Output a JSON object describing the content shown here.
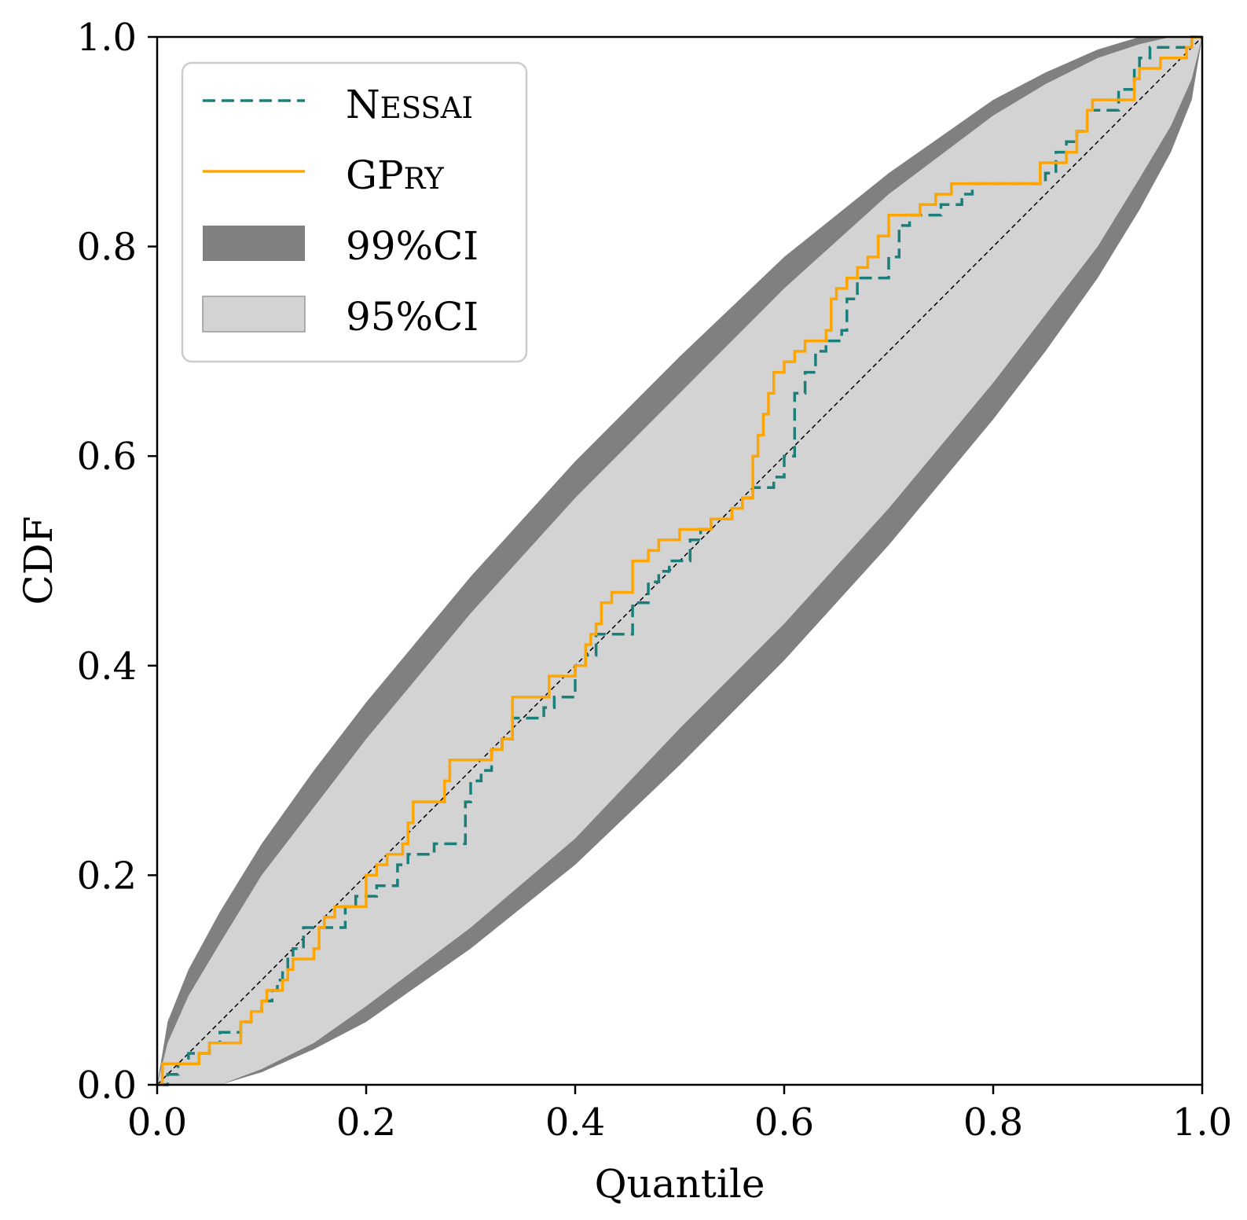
{
  "chart_data": {
    "type": "line",
    "title": "",
    "xlabel": "Quantile",
    "ylabel": "CDF",
    "xlim": [
      0,
      1
    ],
    "ylim": [
      0,
      1
    ],
    "xticks": [
      "0.0",
      "0.2",
      "0.4",
      "0.6",
      "0.8",
      "1.0"
    ],
    "yticks": [
      "0.0",
      "0.2",
      "0.4",
      "0.6",
      "0.8",
      "1.0"
    ],
    "grid": false,
    "legend_position": "top-left",
    "bands": [
      {
        "name": "99%CI",
        "color": "#808080",
        "x": [
          0,
          0.01,
          0.03,
          0.06,
          0.1,
          0.15,
          0.2,
          0.3,
          0.4,
          0.5,
          0.6,
          0.7,
          0.8,
          0.85,
          0.9,
          0.94,
          0.97,
          0.99,
          1.0
        ],
        "upper": [
          0,
          0.06,
          0.11,
          0.165,
          0.23,
          0.3,
          0.365,
          0.485,
          0.595,
          0.695,
          0.79,
          0.87,
          0.94,
          0.966,
          0.988,
          1.0,
          1.0,
          1.0,
          1.0
        ],
        "lower": [
          0,
          0,
          0,
          0,
          0.012,
          0.034,
          0.06,
          0.13,
          0.21,
          0.305,
          0.405,
          0.515,
          0.635,
          0.7,
          0.77,
          0.835,
          0.89,
          0.94,
          1.0
        ]
      },
      {
        "name": "95%CI",
        "color": "#d3d3d3",
        "x": [
          0,
          0.01,
          0.03,
          0.06,
          0.1,
          0.15,
          0.2,
          0.3,
          0.4,
          0.5,
          0.6,
          0.7,
          0.8,
          0.85,
          0.9,
          0.94,
          0.97,
          0.99,
          1.0
        ],
        "upper": [
          0,
          0.04,
          0.085,
          0.135,
          0.2,
          0.265,
          0.33,
          0.45,
          0.56,
          0.66,
          0.76,
          0.85,
          0.925,
          0.955,
          0.98,
          0.993,
          1.0,
          1.0,
          1.0
        ],
        "lower": [
          0,
          0,
          0,
          0,
          0.015,
          0.04,
          0.075,
          0.15,
          0.235,
          0.34,
          0.44,
          0.55,
          0.67,
          0.735,
          0.8,
          0.865,
          0.915,
          0.96,
          1.0
        ]
      }
    ],
    "reference_line": {
      "from": [
        0,
        0
      ],
      "to": [
        1,
        1
      ],
      "style": "dashed",
      "color": "#000000"
    },
    "series": [
      {
        "name": "Nessai",
        "legend_parts": [
          "N",
          "ESSAI"
        ],
        "color": "#1a7f7a",
        "style": "dashed",
        "step": true,
        "points": [
          [
            0,
            0
          ],
          [
            0.01,
            0.01
          ],
          [
            0.02,
            0.02
          ],
          [
            0.03,
            0.03
          ],
          [
            0.05,
            0.04
          ],
          [
            0.06,
            0.05
          ],
          [
            0.08,
            0.06
          ],
          [
            0.09,
            0.07
          ],
          [
            0.1,
            0.08
          ],
          [
            0.11,
            0.09
          ],
          [
            0.115,
            0.1
          ],
          [
            0.12,
            0.11
          ],
          [
            0.125,
            0.12
          ],
          [
            0.13,
            0.13
          ],
          [
            0.14,
            0.15
          ],
          [
            0.17,
            0.15
          ],
          [
            0.18,
            0.17
          ],
          [
            0.19,
            0.18
          ],
          [
            0.21,
            0.19
          ],
          [
            0.23,
            0.21
          ],
          [
            0.24,
            0.22
          ],
          [
            0.265,
            0.23
          ],
          [
            0.29,
            0.23
          ],
          [
            0.295,
            0.27
          ],
          [
            0.3,
            0.29
          ],
          [
            0.31,
            0.3
          ],
          [
            0.32,
            0.32
          ],
          [
            0.33,
            0.33
          ],
          [
            0.34,
            0.35
          ],
          [
            0.36,
            0.35
          ],
          [
            0.37,
            0.36
          ],
          [
            0.38,
            0.37
          ],
          [
            0.39,
            0.37
          ],
          [
            0.4,
            0.4
          ],
          [
            0.41,
            0.41
          ],
          [
            0.42,
            0.43
          ],
          [
            0.45,
            0.43
          ],
          [
            0.455,
            0.46
          ],
          [
            0.46,
            0.46
          ],
          [
            0.47,
            0.48
          ],
          [
            0.48,
            0.49
          ],
          [
            0.49,
            0.5
          ],
          [
            0.5,
            0.5
          ],
          [
            0.51,
            0.52
          ],
          [
            0.52,
            0.53
          ],
          [
            0.53,
            0.54
          ],
          [
            0.55,
            0.55
          ],
          [
            0.56,
            0.56
          ],
          [
            0.57,
            0.57
          ],
          [
            0.59,
            0.58
          ],
          [
            0.6,
            0.6
          ],
          [
            0.61,
            0.66
          ],
          [
            0.62,
            0.68
          ],
          [
            0.63,
            0.7
          ],
          [
            0.64,
            0.71
          ],
          [
            0.655,
            0.72
          ],
          [
            0.66,
            0.75
          ],
          [
            0.67,
            0.77
          ],
          [
            0.69,
            0.77
          ],
          [
            0.7,
            0.79
          ],
          [
            0.71,
            0.82
          ],
          [
            0.72,
            0.83
          ],
          [
            0.74,
            0.83
          ],
          [
            0.75,
            0.84
          ],
          [
            0.77,
            0.85
          ],
          [
            0.78,
            0.86
          ],
          [
            0.8,
            0.86
          ],
          [
            0.845,
            0.86
          ],
          [
            0.85,
            0.87
          ],
          [
            0.86,
            0.89
          ],
          [
            0.87,
            0.9
          ],
          [
            0.88,
            0.91
          ],
          [
            0.89,
            0.93
          ],
          [
            0.9,
            0.93
          ],
          [
            0.92,
            0.95
          ],
          [
            0.935,
            0.97
          ],
          [
            0.94,
            0.98
          ],
          [
            0.95,
            0.99
          ],
          [
            0.97,
            0.99
          ],
          [
            0.99,
            1.0
          ],
          [
            1.0,
            1.0
          ]
        ]
      },
      {
        "name": "GPry",
        "legend_parts": [
          "GP",
          "RY"
        ],
        "color": "#ffa500",
        "style": "solid",
        "step": true,
        "points": [
          [
            0,
            0
          ],
          [
            0.005,
            0.02
          ],
          [
            0.02,
            0.02
          ],
          [
            0.04,
            0.03
          ],
          [
            0.05,
            0.04
          ],
          [
            0.07,
            0.04
          ],
          [
            0.08,
            0.06
          ],
          [
            0.09,
            0.07
          ],
          [
            0.1,
            0.08
          ],
          [
            0.105,
            0.09
          ],
          [
            0.12,
            0.1
          ],
          [
            0.125,
            0.11
          ],
          [
            0.13,
            0.12
          ],
          [
            0.15,
            0.13
          ],
          [
            0.155,
            0.15
          ],
          [
            0.16,
            0.16
          ],
          [
            0.17,
            0.17
          ],
          [
            0.19,
            0.17
          ],
          [
            0.2,
            0.2
          ],
          [
            0.21,
            0.21
          ],
          [
            0.22,
            0.22
          ],
          [
            0.235,
            0.23
          ],
          [
            0.24,
            0.25
          ],
          [
            0.245,
            0.27
          ],
          [
            0.27,
            0.27
          ],
          [
            0.275,
            0.29
          ],
          [
            0.28,
            0.31
          ],
          [
            0.31,
            0.31
          ],
          [
            0.32,
            0.32
          ],
          [
            0.33,
            0.33
          ],
          [
            0.34,
            0.37
          ],
          [
            0.37,
            0.37
          ],
          [
            0.375,
            0.39
          ],
          [
            0.39,
            0.39
          ],
          [
            0.4,
            0.4
          ],
          [
            0.41,
            0.42
          ],
          [
            0.415,
            0.43
          ],
          [
            0.42,
            0.44
          ],
          [
            0.425,
            0.46
          ],
          [
            0.435,
            0.47
          ],
          [
            0.45,
            0.47
          ],
          [
            0.455,
            0.5
          ],
          [
            0.47,
            0.51
          ],
          [
            0.48,
            0.52
          ],
          [
            0.5,
            0.53
          ],
          [
            0.53,
            0.54
          ],
          [
            0.55,
            0.55
          ],
          [
            0.56,
            0.56
          ],
          [
            0.57,
            0.6
          ],
          [
            0.575,
            0.62
          ],
          [
            0.58,
            0.64
          ],
          [
            0.585,
            0.66
          ],
          [
            0.59,
            0.68
          ],
          [
            0.6,
            0.69
          ],
          [
            0.61,
            0.7
          ],
          [
            0.62,
            0.71
          ],
          [
            0.64,
            0.72
          ],
          [
            0.645,
            0.75
          ],
          [
            0.65,
            0.76
          ],
          [
            0.66,
            0.77
          ],
          [
            0.67,
            0.78
          ],
          [
            0.68,
            0.79
          ],
          [
            0.69,
            0.81
          ],
          [
            0.7,
            0.83
          ],
          [
            0.72,
            0.83
          ],
          [
            0.73,
            0.84
          ],
          [
            0.745,
            0.85
          ],
          [
            0.76,
            0.86
          ],
          [
            0.84,
            0.86
          ],
          [
            0.845,
            0.88
          ],
          [
            0.86,
            0.88
          ],
          [
            0.87,
            0.89
          ],
          [
            0.88,
            0.91
          ],
          [
            0.89,
            0.93
          ],
          [
            0.895,
            0.94
          ],
          [
            0.92,
            0.94
          ],
          [
            0.935,
            0.96
          ],
          [
            0.94,
            0.97
          ],
          [
            0.96,
            0.98
          ],
          [
            0.985,
            0.99
          ],
          [
            0.99,
            1.0
          ],
          [
            1.0,
            1.0
          ]
        ]
      }
    ]
  }
}
